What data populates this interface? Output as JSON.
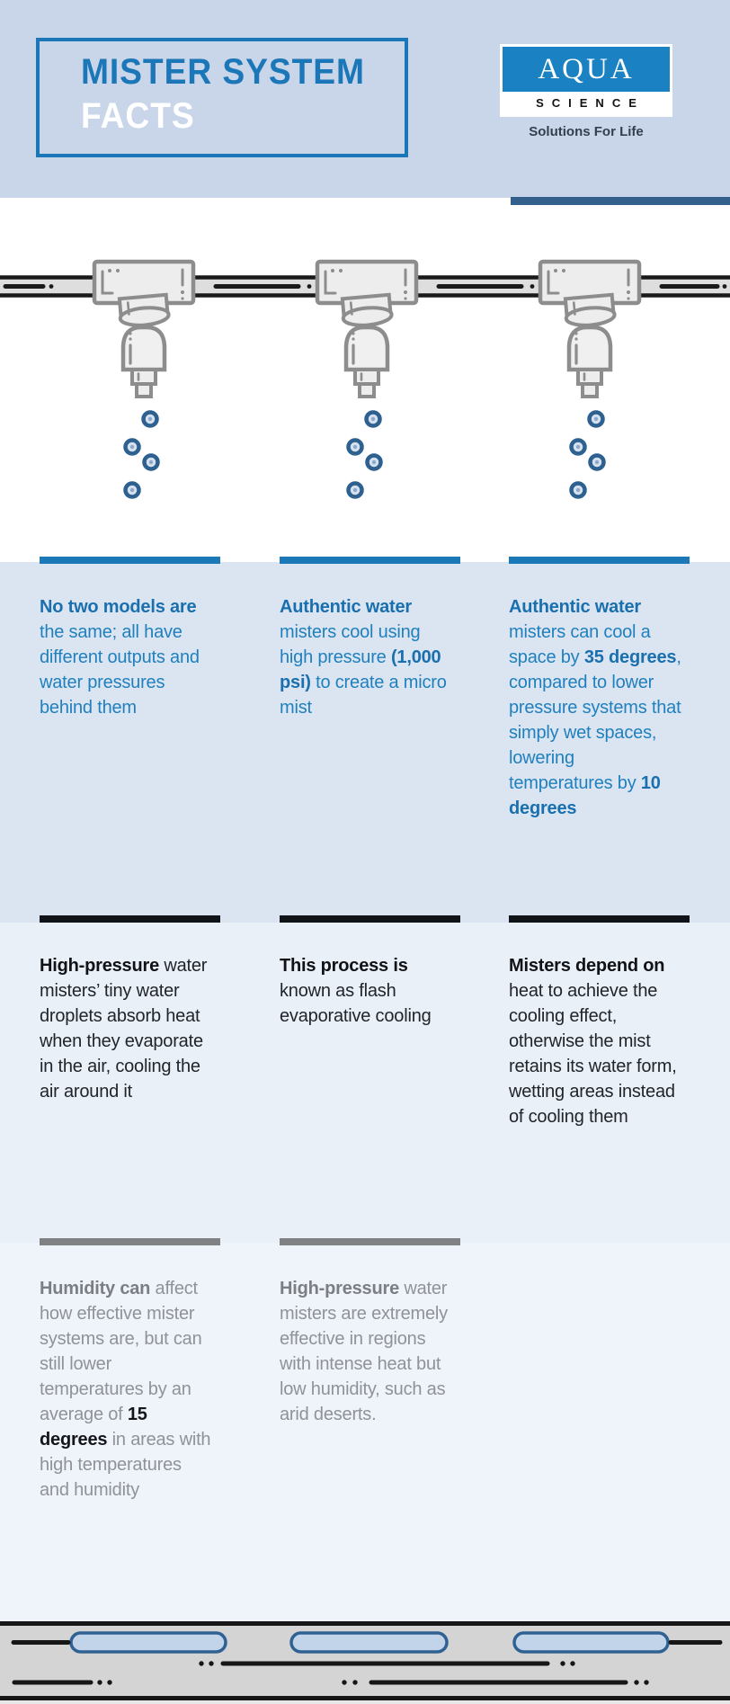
{
  "header": {
    "title_line1": "MISTER SYSTEM",
    "title_line2": "FACTS",
    "logo": {
      "name": "AQUA",
      "sub": "SCIENCE",
      "tagline": "Solutions For Life"
    }
  },
  "facts": {
    "blue": [
      [
        {
          "t": "No two models are",
          "s": "b"
        },
        {
          "t": " the same; all have different outputs and water pressures behind them",
          "s": ""
        }
      ],
      [
        {
          "t": "Authentic water",
          "s": "b"
        },
        {
          "t": " misters cool using high pressure ",
          "s": ""
        },
        {
          "t": "(1,000 psi)",
          "s": "b"
        },
        {
          "t": " to create a micro mist",
          "s": ""
        }
      ],
      [
        {
          "t": "Authentic water",
          "s": "b"
        },
        {
          "t": " misters can cool a space by ",
          "s": ""
        },
        {
          "t": "35 degrees",
          "s": "b"
        },
        {
          "t": ", compared to lower pressure systems that simply wet spaces, lowering temperatures by ",
          "s": ""
        },
        {
          "t": "10 degrees",
          "s": "b"
        }
      ]
    ],
    "dark": [
      [
        {
          "t": "High-pressure",
          "s": "b"
        },
        {
          "t": " water misters’ tiny water droplets absorb heat when they evaporate in the air, cooling the air around it",
          "s": ""
        }
      ],
      [
        {
          "t": "This process is",
          "s": "b"
        },
        {
          "t": " known as flash evaporative cooling",
          "s": ""
        }
      ],
      [
        {
          "t": "Misters depend on",
          "s": "b"
        },
        {
          "t": " heat to achieve the cooling effect, otherwise the mist retains its water form, wetting areas instead of cooling them",
          "s": ""
        }
      ]
    ],
    "gray": [
      [
        {
          "t": "Humidity can",
          "s": "b"
        },
        {
          "t": " affect how effective mister systems are, but can still lower temperatures by an average of ",
          "s": ""
        },
        {
          "t": "15 degrees",
          "s": "bd"
        },
        {
          "t": " in areas with high temperatures and humidity",
          "s": ""
        }
      ],
      [
        {
          "t": "High-pressure",
          "s": "b"
        },
        {
          "t": " water misters are extremely effective in regions with intense heat but low humidity, such as arid deserts.",
          "s": ""
        }
      ]
    ]
  },
  "colors": {
    "header_bg": "#c9d6e9",
    "brand_blue": "#1c77b8",
    "navy_bar": "#33618c",
    "logo_blue": "#1a81c2",
    "sec1_bg": "#dbe5f1",
    "sec2_bg": "#eaf0f8",
    "sec3_bg": "#eff3fa",
    "blue_text": "#2080bd",
    "blue_bold": "#1a6fae",
    "dark_text": "#212529",
    "gray_text": "#8f9397",
    "bar_blue": "#1b79b8",
    "bar_dark": "#101317",
    "bar_gray": "#7f8183",
    "band_gray": "#d4d4d4",
    "droplet_ring": "#2e6190",
    "pill_fill": "#c2d4ea",
    "pill_stroke": "#2f6293",
    "nozzle_stroke": "#8d8d8d",
    "nozzle_fill": "#ededed"
  }
}
